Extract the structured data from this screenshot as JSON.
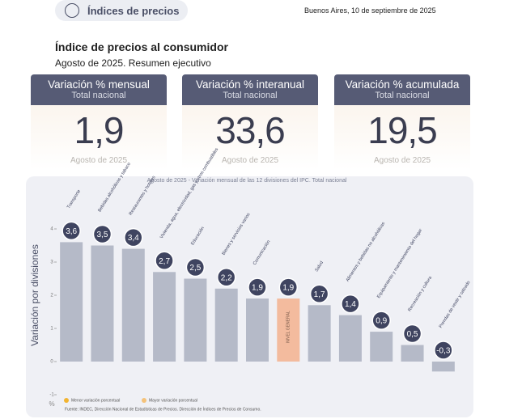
{
  "header": {
    "badge": "Índices de precios",
    "dateline": "Buenos Aires, 10 de septiembre de 2025",
    "title": "Índice de precios al consumidor",
    "subtitle": "Agosto de 2025. Resumen ejecutivo"
  },
  "kpis": [
    {
      "title": "Variación % mensual",
      "scope": "Total nacional",
      "value": "1,9",
      "period": "Agosto de 2025"
    },
    {
      "title": "Variación % interanual",
      "scope": "Total nacional",
      "value": "33,6",
      "period": "Agosto de 2025"
    },
    {
      "title": "Variación % acumulada",
      "scope": "Total nacional",
      "value": "19,5",
      "period": "Agosto de 2025"
    }
  ],
  "chart_data": {
    "type": "bar",
    "title": "Agosto de 2025 - Variación mensual de las 12 divisiones del IPC. Total nacional",
    "ylabel": "Variación por divisiones",
    "yunit": "%",
    "categories": [
      "Transporte",
      "Bebidas alcohólicas y tabaco",
      "Restaurantes y hoteles",
      "Vivienda, agua, electricidad, gas y otros combustibles",
      "Educación",
      "Bienes y servicios varios",
      "Comunicación",
      "NIVEL GENERAL",
      "Salud",
      "Alimentos y bebidas no alcohólicas",
      "Equipamiento y mantenimiento del hogar",
      "Recreación y cultura",
      "Prendas de vestir y calzado"
    ],
    "values": [
      3.6,
      3.5,
      3.4,
      2.7,
      2.5,
      2.2,
      1.9,
      1.9,
      1.7,
      1.4,
      0.9,
      0.5,
      -0.3
    ],
    "value_labels": [
      "3,6",
      "3,5",
      "3,4",
      "2,7",
      "2,5",
      "2,2",
      "1,9",
      "1,9",
      "1,7",
      "1,4",
      "0,9",
      "0,5",
      "-0,3"
    ],
    "colors": [
      "#b5bac8",
      "#b5bac8",
      "#b5bac8",
      "#b5bac8",
      "#b5bac8",
      "#b5bac8",
      "#b5bac8",
      "#f3bb9e",
      "#b5bac8",
      "#b5bac8",
      "#b5bac8",
      "#b5bac8",
      "#b5bac8"
    ],
    "ylim": [
      -1,
      4
    ],
    "yticks": [
      -1,
      0,
      1,
      2,
      3,
      4
    ],
    "legend": [
      {
        "label": "Menor variación porcentual",
        "color": "#f2b431"
      },
      {
        "label": "Mayor variación porcentual",
        "color": "#f4c27a"
      }
    ],
    "source": "Fuente: INDEC, Dirección Nacional de Estadísticas de Precios. Dirección de Índices de Precios de Consumo."
  }
}
